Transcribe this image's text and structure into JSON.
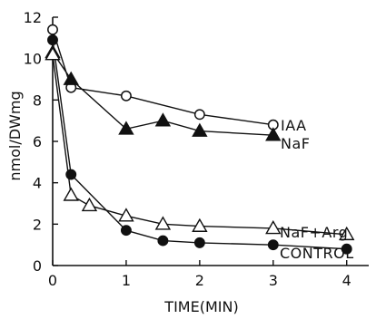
{
  "chart_data": {
    "type": "line",
    "title": "",
    "xlabel": "TIME(MIN)",
    "ylabel": "nmol/DWmg",
    "xlim": [
      0,
      4.3
    ],
    "ylim": [
      0,
      12
    ],
    "xticks": [
      0,
      1,
      2,
      3,
      4
    ],
    "yticks": [
      0,
      2,
      4,
      6,
      8,
      10,
      12
    ],
    "grid": false,
    "legend": "inline labels at right of series",
    "series": [
      {
        "name": "IAA",
        "marker": "open-circle",
        "points": [
          {
            "x": 0,
            "y": 11.4
          },
          {
            "x": 0.25,
            "y": 8.6
          },
          {
            "x": 1,
            "y": 8.2
          },
          {
            "x": 2,
            "y": 7.3
          },
          {
            "x": 3,
            "y": 6.8
          }
        ]
      },
      {
        "name": "NaF",
        "marker": "filled-triangle",
        "points": [
          {
            "x": 0,
            "y": 10.3
          },
          {
            "x": 0.25,
            "y": 9.0
          },
          {
            "x": 1,
            "y": 6.6
          },
          {
            "x": 1.5,
            "y": 7.0
          },
          {
            "x": 2,
            "y": 6.5
          },
          {
            "x": 3,
            "y": 6.3
          }
        ]
      },
      {
        "name": "NaF+Arg",
        "marker": "open-triangle",
        "points": [
          {
            "x": 0,
            "y": 10.2
          },
          {
            "x": 0.25,
            "y": 3.4
          },
          {
            "x": 0.5,
            "y": 2.9
          },
          {
            "x": 1,
            "y": 2.4
          },
          {
            "x": 1.5,
            "y": 2.0
          },
          {
            "x": 2,
            "y": 1.9
          },
          {
            "x": 3,
            "y": 1.8
          },
          {
            "x": 4,
            "y": 1.5
          }
        ]
      },
      {
        "name": "CONTROL",
        "marker": "filled-circle",
        "points": [
          {
            "x": 0,
            "y": 10.9
          },
          {
            "x": 0.25,
            "y": 4.4
          },
          {
            "x": 1,
            "y": 1.7
          },
          {
            "x": 1.5,
            "y": 1.2
          },
          {
            "x": 2,
            "y": 1.1
          },
          {
            "x": 3,
            "y": 1.0
          },
          {
            "x": 4,
            "y": 0.8
          }
        ]
      }
    ]
  }
}
